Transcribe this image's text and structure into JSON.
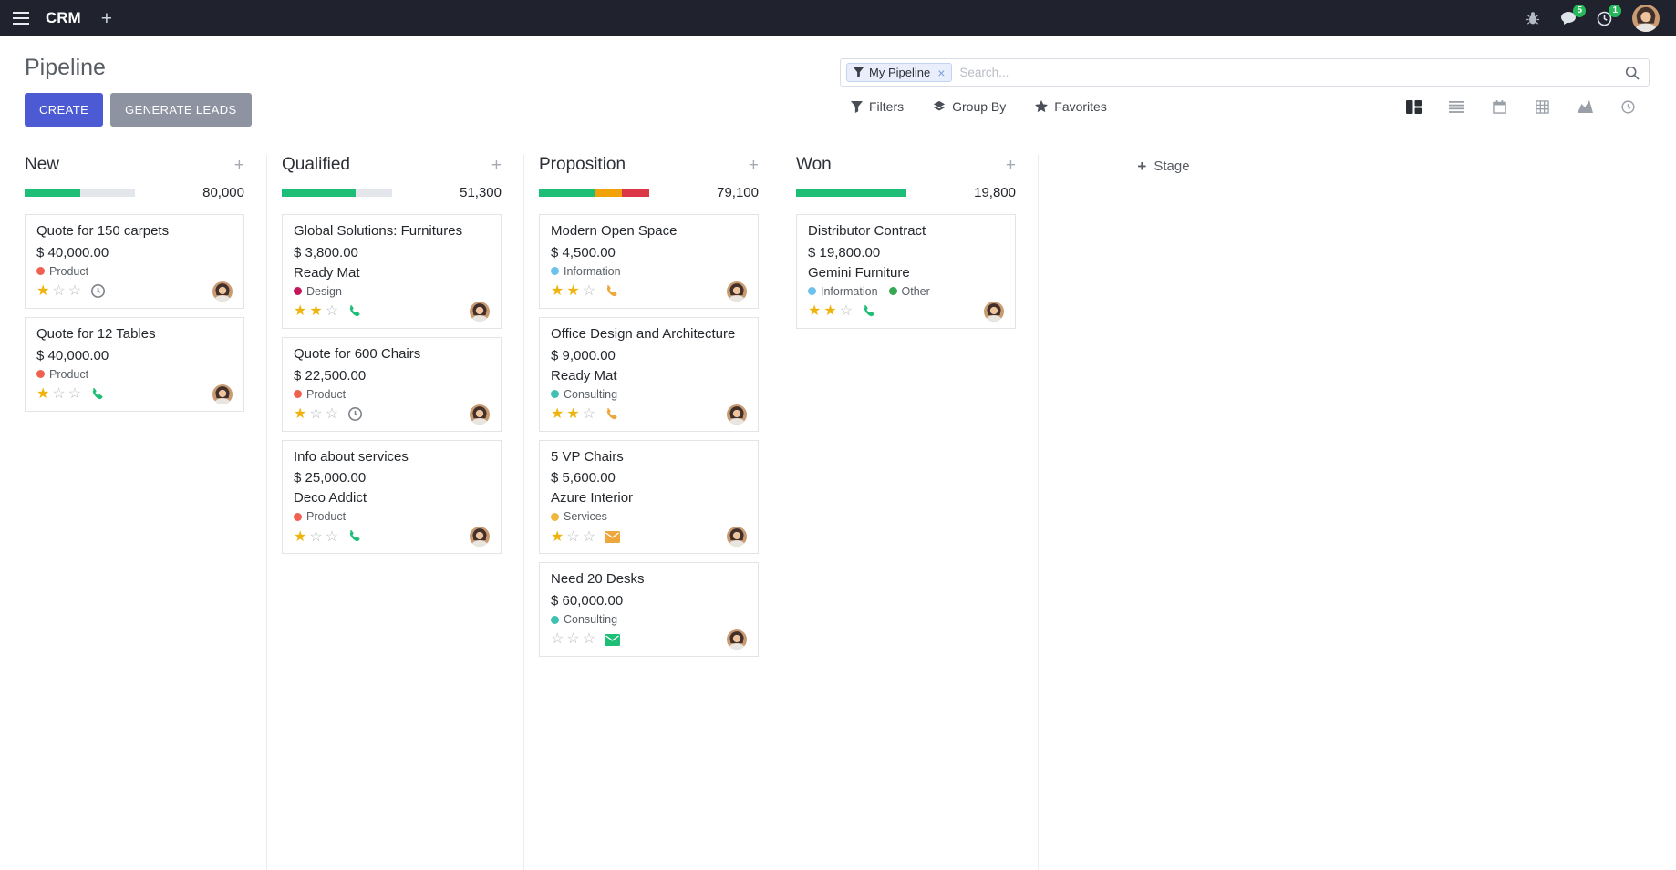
{
  "topbar": {
    "app_label": "CRM",
    "message_badge": "5",
    "activity_badge": "1"
  },
  "control_panel": {
    "title": "Pipeline",
    "create_label": "CREATE",
    "generate_label": "GENERATE LEADS",
    "search": {
      "facet_label": "My Pipeline",
      "placeholder": "Search..."
    },
    "filters_label": "Filters",
    "group_by_label": "Group By",
    "favorites_label": "Favorites"
  },
  "views": {
    "active": "kanban",
    "order": [
      "kanban",
      "list",
      "calendar",
      "pivot",
      "graph",
      "activity"
    ]
  },
  "icons": {
    "menu": "☰",
    "plus": "+",
    "close": "×",
    "star_filled": "★",
    "star_empty": "☆"
  },
  "colors": {
    "accent": "#4c5bd4",
    "muted_button": "#8d93a0",
    "topbar_bg": "#20232d",
    "badge_green": "#28b85c",
    "star_gold": "#efb30e",
    "star_empty": "#b9bdc3"
  },
  "board": {
    "add_stage_label": "Stage",
    "bar_bg": "#e3e6ea",
    "columns": [
      {
        "title": "New",
        "total": "80,000",
        "progress": [
          {
            "color": "#1ebe76",
            "pct": 50
          }
        ],
        "cards": [
          {
            "title": "Quote for 150 carpets",
            "amount": "$ 40,000.00",
            "tags": [
              {
                "label": "Product",
                "color": "#f06050"
              }
            ],
            "stars": 1,
            "activity": {
              "type": "clock",
              "color": "#7d828a"
            }
          },
          {
            "title": "Quote for 12 Tables",
            "amount": "$ 40,000.00",
            "tags": [
              {
                "label": "Product",
                "color": "#f06050"
              }
            ],
            "stars": 1,
            "activity": {
              "type": "phone",
              "color": "#1ebe76"
            }
          }
        ]
      },
      {
        "title": "Qualified",
        "total": "51,300",
        "progress": [
          {
            "color": "#1ebe76",
            "pct": 66.7
          }
        ],
        "cards": [
          {
            "title": "Global Solutions: Furnitures",
            "amount": "$ 3,800.00",
            "partner": "Ready Mat",
            "tags": [
              {
                "label": "Design",
                "color": "#c2185b"
              }
            ],
            "stars": 2,
            "activity": {
              "type": "phone",
              "color": "#1ebe76"
            }
          },
          {
            "title": "Quote for 600 Chairs",
            "amount": "$ 22,500.00",
            "tags": [
              {
                "label": "Product",
                "color": "#f06050"
              }
            ],
            "stars": 1,
            "activity": {
              "type": "clock",
              "color": "#7d828a"
            }
          },
          {
            "title": "Info about services",
            "amount": "$ 25,000.00",
            "partner": "Deco Addict",
            "tags": [
              {
                "label": "Product",
                "color": "#f06050"
              }
            ],
            "stars": 1,
            "activity": {
              "type": "phone",
              "color": "#1ebe76"
            }
          }
        ]
      },
      {
        "title": "Proposition",
        "total": "79,100",
        "progress": [
          {
            "color": "#1ebe76",
            "pct": 50
          },
          {
            "color": "#f1a208",
            "pct": 25
          },
          {
            "color": "#dc3545",
            "pct": 25
          }
        ],
        "cards": [
          {
            "title": "Modern Open Space",
            "amount": "$ 4,500.00",
            "tags": [
              {
                "label": "Information",
                "color": "#6cc1ed"
              }
            ],
            "stars": 2,
            "activity": {
              "type": "phone",
              "color": "#eda73c"
            }
          },
          {
            "title": "Office Design and Architecture",
            "amount": "$ 9,000.00",
            "partner": "Ready Mat",
            "tags": [
              {
                "label": "Consulting",
                "color": "#3ec1b1"
              }
            ],
            "stars": 2,
            "activity": {
              "type": "phone",
              "color": "#eda73c"
            }
          },
          {
            "title": "5 VP Chairs",
            "amount": "$ 5,600.00",
            "partner": "Azure Interior",
            "tags": [
              {
                "label": "Services",
                "color": "#efb73e"
              }
            ],
            "stars": 1,
            "activity": {
              "type": "envelope",
              "color": "#eda73c"
            }
          },
          {
            "title": "Need 20 Desks",
            "amount": "$ 60,000.00",
            "tags": [
              {
                "label": "Consulting",
                "color": "#3ec1b1"
              }
            ],
            "stars": 0,
            "activity": {
              "type": "envelope",
              "color": "#1ebe76"
            }
          }
        ]
      },
      {
        "title": "Won",
        "total": "19,800",
        "progress": [
          {
            "color": "#1ebe76",
            "pct": 100
          }
        ],
        "cards": [
          {
            "title": "Distributor Contract",
            "amount": "$ 19,800.00",
            "partner": "Gemini Furniture",
            "tags": [
              {
                "label": "Information",
                "color": "#6cc1ed"
              },
              {
                "label": "Other",
                "color": "#34a853"
              }
            ],
            "stars": 2,
            "activity": {
              "type": "phone",
              "color": "#1ebe76"
            }
          }
        ]
      }
    ]
  }
}
